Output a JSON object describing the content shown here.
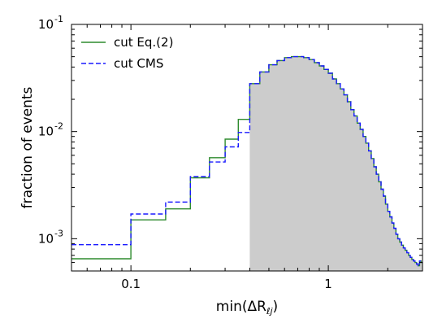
{
  "chart_data": {
    "type": "line",
    "step": "post",
    "xscale": "log",
    "yscale": "log",
    "xlim": [
      0.05,
      3.0
    ],
    "ylim": [
      0.0005,
      0.1
    ],
    "xlabel": "min(ΔR",
    "xlabel_sub": "ℓj",
    "xlabel_close": ")",
    "ylabel": "fraction of events",
    "x_ticks": [
      {
        "value": 0.1,
        "label": "0.1"
      },
      {
        "value": 1,
        "label": "1"
      }
    ],
    "y_ticks": [
      {
        "value": 0.001,
        "base": "10",
        "exp": "-3"
      },
      {
        "value": 0.01,
        "base": "10",
        "exp": "-2"
      },
      {
        "value": 0.1,
        "base": "10",
        "exp": "-1"
      }
    ],
    "legend_position": "top-left",
    "shaded_region": {
      "from_x": 0.4,
      "color": "#cccccc"
    },
    "series": [
      {
        "name": "cut Eq.(2)",
        "color": "#2e8b2e",
        "dash": "solid",
        "x": [
          0.05,
          0.1,
          0.15,
          0.2,
          0.25,
          0.3,
          0.35,
          0.4,
          0.45,
          0.5,
          0.55,
          0.6,
          0.65,
          0.7,
          0.75,
          0.8,
          0.85,
          0.9,
          0.95,
          1.0,
          1.05,
          1.1,
          1.15,
          1.2,
          1.25,
          1.3,
          1.35,
          1.4,
          1.45,
          1.5,
          1.55,
          1.6,
          1.65,
          1.7,
          1.75,
          1.8,
          1.85,
          1.9,
          1.95,
          2.0,
          2.05,
          2.1,
          2.15,
          2.2,
          2.25,
          2.3,
          2.35,
          2.4,
          2.45,
          2.5,
          2.55,
          2.6,
          2.65,
          2.7,
          2.75,
          2.8,
          2.85,
          2.9,
          2.95
        ],
        "y": [
          0.00065,
          0.0015,
          0.0019,
          0.0037,
          0.0057,
          0.0085,
          0.013,
          0.028,
          0.036,
          0.042,
          0.046,
          0.049,
          0.05,
          0.05,
          0.049,
          0.047,
          0.044,
          0.041,
          0.038,
          0.035,
          0.031,
          0.028,
          0.025,
          0.022,
          0.019,
          0.016,
          0.014,
          0.012,
          0.0105,
          0.009,
          0.0078,
          0.0066,
          0.0056,
          0.0047,
          0.004,
          0.0034,
          0.0029,
          0.0025,
          0.0021,
          0.0018,
          0.0016,
          0.0014,
          0.00125,
          0.0011,
          0.001,
          0.00093,
          0.00087,
          0.00082,
          0.00078,
          0.00074,
          0.0007,
          0.00067,
          0.00064,
          0.00062,
          0.0006,
          0.00058,
          0.00056,
          0.00062,
          0.0006
        ]
      },
      {
        "name": "cut CMS",
        "color": "#1a1aff",
        "dash": "dashed",
        "x": [
          0.05,
          0.1,
          0.15,
          0.2,
          0.25,
          0.3,
          0.35,
          0.4,
          0.45,
          0.5,
          0.55,
          0.6,
          0.65,
          0.7,
          0.75,
          0.8,
          0.85,
          0.9,
          0.95,
          1.0,
          1.05,
          1.1,
          1.15,
          1.2,
          1.25,
          1.3,
          1.35,
          1.4,
          1.45,
          1.5,
          1.55,
          1.6,
          1.65,
          1.7,
          1.75,
          1.8,
          1.85,
          1.9,
          1.95,
          2.0,
          2.05,
          2.1,
          2.15,
          2.2,
          2.25,
          2.3,
          2.35,
          2.4,
          2.45,
          2.5,
          2.55,
          2.6,
          2.65,
          2.7,
          2.75,
          2.8,
          2.85,
          2.9,
          2.95
        ],
        "y": [
          0.00088,
          0.0017,
          0.0022,
          0.0038,
          0.0052,
          0.0072,
          0.0098,
          0.028,
          0.036,
          0.042,
          0.046,
          0.049,
          0.05,
          0.05,
          0.049,
          0.047,
          0.044,
          0.041,
          0.038,
          0.035,
          0.031,
          0.028,
          0.025,
          0.022,
          0.019,
          0.016,
          0.014,
          0.012,
          0.0105,
          0.009,
          0.0078,
          0.0066,
          0.0056,
          0.0047,
          0.004,
          0.0034,
          0.0029,
          0.0025,
          0.0021,
          0.0018,
          0.0016,
          0.0014,
          0.00125,
          0.0011,
          0.001,
          0.00093,
          0.00087,
          0.00082,
          0.00078,
          0.00074,
          0.0007,
          0.00067,
          0.00064,
          0.00062,
          0.0006,
          0.00058,
          0.00056,
          0.00062,
          0.0006
        ]
      }
    ]
  }
}
